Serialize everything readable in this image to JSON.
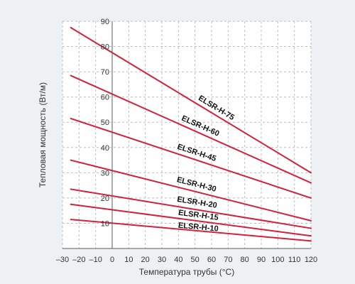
{
  "chart_data": {
    "type": "line",
    "xlabel": "Температура трубы (°С)",
    "ylabel": "Тепловая мощность (Вт/м)",
    "xlim": [
      -30,
      120
    ],
    "ylim": [
      0,
      90
    ],
    "x_ticks": [
      -30,
      -20,
      -10,
      0,
      10,
      20,
      30,
      40,
      50,
      60,
      70,
      80,
      90,
      100,
      110,
      120
    ],
    "x_tick_labels": [
      "–30",
      "–20",
      "–10",
      "0",
      "10",
      "20",
      "30",
      "40",
      "50",
      "60",
      "70",
      "80",
      "90",
      "100",
      "110",
      "120"
    ],
    "y_ticks": [
      10,
      20,
      30,
      40,
      50,
      60,
      70,
      80,
      90
    ],
    "y_tick_labels": [
      "10",
      "20",
      "30",
      "40",
      "50",
      "60",
      "70",
      "80",
      "90"
    ],
    "grid": true,
    "legend": "none",
    "line_color": "#d61f3a",
    "series": [
      {
        "name": "ELSR-H-75",
        "x": [
          -25,
          120
        ],
        "y": [
          87.5,
          30
        ]
      },
      {
        "name": "ELSR-H-60",
        "x": [
          -25,
          120
        ],
        "y": [
          68.5,
          26
        ]
      },
      {
        "name": "ELSR-H-45",
        "x": [
          -25,
          120
        ],
        "y": [
          51.5,
          20
        ]
      },
      {
        "name": "ELSR-H-30",
        "x": [
          -25,
          120
        ],
        "y": [
          35,
          11
        ]
      },
      {
        "name": "ELSR-H-20",
        "x": [
          -25,
          120
        ],
        "y": [
          23.5,
          8
        ]
      },
      {
        "name": "ELSR-H-15",
        "x": [
          -25,
          120
        ],
        "y": [
          17.5,
          5
        ]
      },
      {
        "name": "ELSR-H-10",
        "x": [
          -25,
          120
        ],
        "y": [
          11.5,
          3
        ]
      }
    ]
  }
}
